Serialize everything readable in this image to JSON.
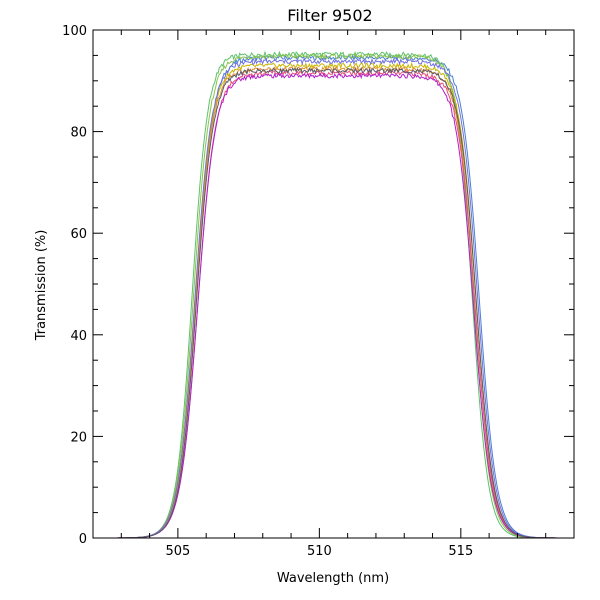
{
  "chart_data": {
    "type": "line",
    "title": "Filter 9502",
    "xlabel": "Wavelength (nm)",
    "ylabel": "Transmission (%)",
    "xlim": [
      502,
      519
    ],
    "ylim": [
      0,
      100
    ],
    "x_ticks": [
      505,
      510,
      515
    ],
    "y_ticks": [
      0,
      20,
      40,
      60,
      80,
      100
    ],
    "x_tick_labels": [
      "505",
      "510",
      "515"
    ],
    "y_tick_labels": [
      "0",
      "20",
      "40",
      "60",
      "80",
      "100"
    ],
    "grid": false,
    "legend": "none",
    "series": [
      {
        "color": "#4a7fd6",
        "left_edge": 505.65,
        "right_edge": 515.65,
        "plateau": 94.5,
        "edge_width": 0.3
      },
      {
        "color": "#5cc26a",
        "left_edge": 505.5,
        "right_edge": 515.4,
        "plateau": 95.2,
        "edge_width": 0.28
      },
      {
        "color": "#8bc34a",
        "left_edge": 505.55,
        "right_edge": 515.45,
        "plateau": 94.8,
        "edge_width": 0.29
      },
      {
        "color": "#c8b400",
        "left_edge": 505.6,
        "right_edge": 515.55,
        "plateau": 93.0,
        "edge_width": 0.3
      },
      {
        "color": "#e09030",
        "left_edge": 505.62,
        "right_edge": 515.5,
        "plateau": 92.3,
        "edge_width": 0.3
      },
      {
        "color": "#e8507a",
        "left_edge": 505.7,
        "right_edge": 515.5,
        "plateau": 91.5,
        "edge_width": 0.31
      },
      {
        "color": "#b020c8",
        "left_edge": 505.7,
        "right_edge": 515.45,
        "plateau": 91.0,
        "edge_width": 0.31
      },
      {
        "color": "#7070e0",
        "left_edge": 505.6,
        "right_edge": 515.6,
        "plateau": 93.8,
        "edge_width": 0.3
      },
      {
        "color": "#5a5a6a",
        "left_edge": 505.65,
        "right_edge": 515.55,
        "plateau": 92.0,
        "edge_width": 0.3
      }
    ]
  }
}
